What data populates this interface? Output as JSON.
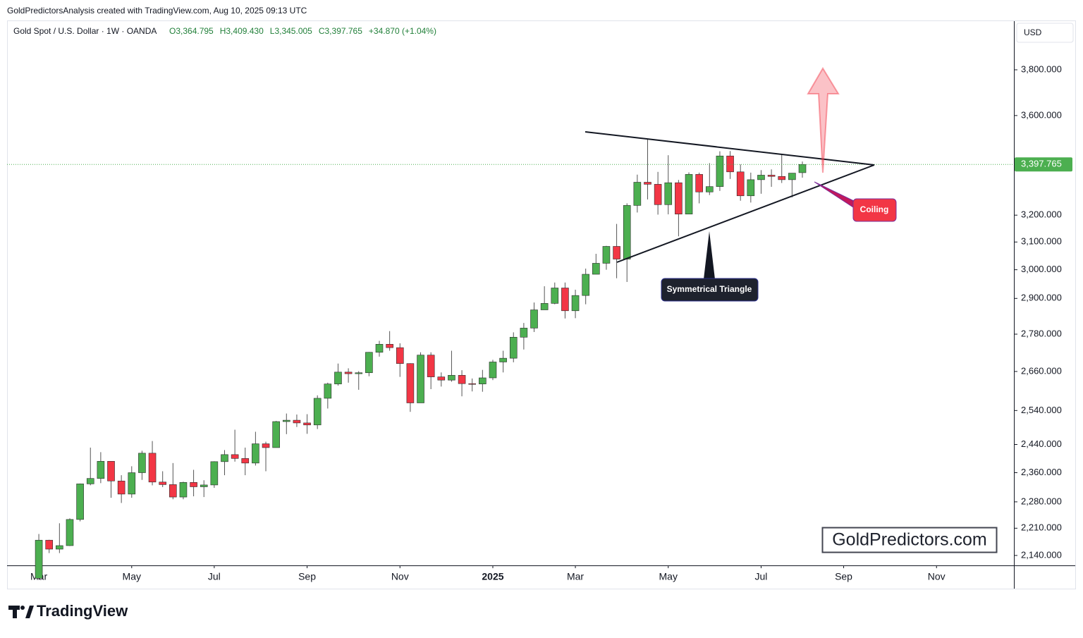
{
  "header": {
    "credit": "GoldPredictorsAnalysis created with TradingView.com, Aug 10, 2025 09:13 UTC",
    "symbol": "Gold Spot / U.S. Dollar · 1W · OANDA",
    "ohlc": [
      "O3,364.795",
      "H3,409.430",
      "L3,345.005",
      "C3,397.765",
      "+34.870 (+1.04%)"
    ],
    "currency": "USD"
  },
  "chart_data": {
    "type": "candlestick",
    "log_scale": true,
    "grid": false,
    "up_color": "#4caf50",
    "down_color": "#f23645",
    "ylim": [
      2115,
      4025
    ],
    "xlim": [
      -3.08,
      94.5
    ],
    "yticks": [
      {
        "value": 2140,
        "label": "2,140.000"
      },
      {
        "value": 2210,
        "label": "2,210.000"
      },
      {
        "value": 2280,
        "label": "2,280.000"
      },
      {
        "value": 2360,
        "label": "2,360.000"
      },
      {
        "value": 2440,
        "label": "2,440.000"
      },
      {
        "value": 2540,
        "label": "2,540.000"
      },
      {
        "value": 2660,
        "label": "2,660.000"
      },
      {
        "value": 2780,
        "label": "2,780.000"
      },
      {
        "value": 2900,
        "label": "2,900.000"
      },
      {
        "value": 3000,
        "label": "3,000.000"
      },
      {
        "value": 3100,
        "label": "3,100.000"
      },
      {
        "value": 3200,
        "label": "3,200.000"
      },
      {
        "value": 3600,
        "label": "3,600.000"
      },
      {
        "value": 3800,
        "label": "3,800.000"
      }
    ],
    "xticks": [
      {
        "value": 0,
        "label": "Mar"
      },
      {
        "value": 9,
        "label": "May"
      },
      {
        "value": 17,
        "label": "Jul"
      },
      {
        "value": 26,
        "label": "Sep"
      },
      {
        "value": 35,
        "label": "Nov"
      },
      {
        "value": 44,
        "label": "2025"
      },
      {
        "value": 52,
        "label": "Mar"
      },
      {
        "value": 61,
        "label": "May"
      },
      {
        "value": 70,
        "label": "Jul"
      },
      {
        "value": 78,
        "label": "Sep"
      },
      {
        "value": 87,
        "label": "Nov"
      }
    ],
    "last_price": {
      "value": 3397.765,
      "label": "3,397.765"
    },
    "open": [
      2083,
      2179,
      2156,
      2165,
      2233,
      2329,
      2344,
      2392,
      2337,
      2301,
      2360,
      2415,
      2334,
      2327,
      2293,
      2333,
      2321,
      2326,
      2391,
      2411,
      2400,
      2387,
      2442,
      2431,
      2507,
      2511,
      2503,
      2497,
      2577,
      2621,
      2658,
      2653,
      2656,
      2721,
      2747,
      2736,
      2685,
      2563,
      2712,
      2643,
      2633,
      2648,
      2622,
      2621,
      2640,
      2690,
      2702,
      2770,
      2800,
      2861,
      2883,
      2936,
      2858,
      2910,
      2984,
      3023,
      3084,
      3038,
      3237,
      3327,
      3319,
      3240,
      3325,
      3204,
      3358,
      3289,
      3310,
      3432,
      3368,
      3274,
      3337,
      3355,
      3350,
      3337,
      3364.795
    ],
    "high": [
      2195,
      2180,
      2223,
      2236,
      2330,
      2431,
      2418,
      2392,
      2353,
      2378,
      2422,
      2450,
      2364,
      2387,
      2335,
      2368,
      2339,
      2392,
      2424,
      2483,
      2431,
      2477,
      2448,
      2509,
      2531,
      2528,
      2529,
      2586,
      2625,
      2685,
      2670,
      2661,
      2722,
      2758,
      2790,
      2750,
      2686,
      2721,
      2721,
      2657,
      2726,
      2664,
      2638,
      2665,
      2697,
      2726,
      2786,
      2817,
      2886,
      2942,
      2955,
      2955,
      2930,
      3004,
      3057,
      3086,
      3167,
      3245,
      3357,
      3500,
      3368,
      3435,
      3336,
      3366,
      3365,
      3403,
      3451,
      3452,
      3398,
      3365,
      3375,
      3378,
      3439,
      3363,
      3409.43
    ],
    "low": [
      2079,
      2146,
      2146,
      2164,
      2228,
      2325,
      2331,
      2291,
      2277,
      2291,
      2340,
      2325,
      2320,
      2287,
      2287,
      2295,
      2293,
      2318,
      2353,
      2391,
      2353,
      2380,
      2364,
      2431,
      2470,
      2491,
      2471,
      2485,
      2546,
      2616,
      2625,
      2603,
      2645,
      2707,
      2726,
      2643,
      2536,
      2563,
      2605,
      2613,
      2628,
      2583,
      2598,
      2597,
      2633,
      2657,
      2689,
      2730,
      2787,
      2864,
      2880,
      2832,
      2833,
      2880,
      2999,
      3000,
      2970,
      2957,
      3210,
      3260,
      3202,
      3203,
      3121,
      3204,
      3245,
      3277,
      3293,
      3340,
      3255,
      3248,
      3282,
      3309,
      3324,
      3268,
      3345.005
    ],
    "close": [
      2179,
      2156,
      2165,
      2233,
      2329,
      2344,
      2392,
      2337,
      2301,
      2360,
      2415,
      2334,
      2327,
      2293,
      2333,
      2321,
      2326,
      2391,
      2411,
      2400,
      2387,
      2442,
      2431,
      2507,
      2511,
      2503,
      2497,
      2577,
      2621,
      2658,
      2653,
      2656,
      2721,
      2747,
      2736,
      2685,
      2563,
      2712,
      2643,
      2633,
      2648,
      2622,
      2621,
      2640,
      2690,
      2702,
      2770,
      2800,
      2861,
      2883,
      2936,
      2858,
      2910,
      2984,
      3023,
      3084,
      3038,
      3237,
      3327,
      3319,
      3240,
      3325,
      3204,
      3358,
      3289,
      3310,
      3432,
      3368,
      3274,
      3337,
      3355,
      3350,
      3337,
      3363,
      3397.765
    ]
  },
  "annotations": {
    "pattern": "Symmetrical Triangle",
    "coiling": "Coiling",
    "watermark": "GoldPredictors.com",
    "brand": "TradingView"
  }
}
